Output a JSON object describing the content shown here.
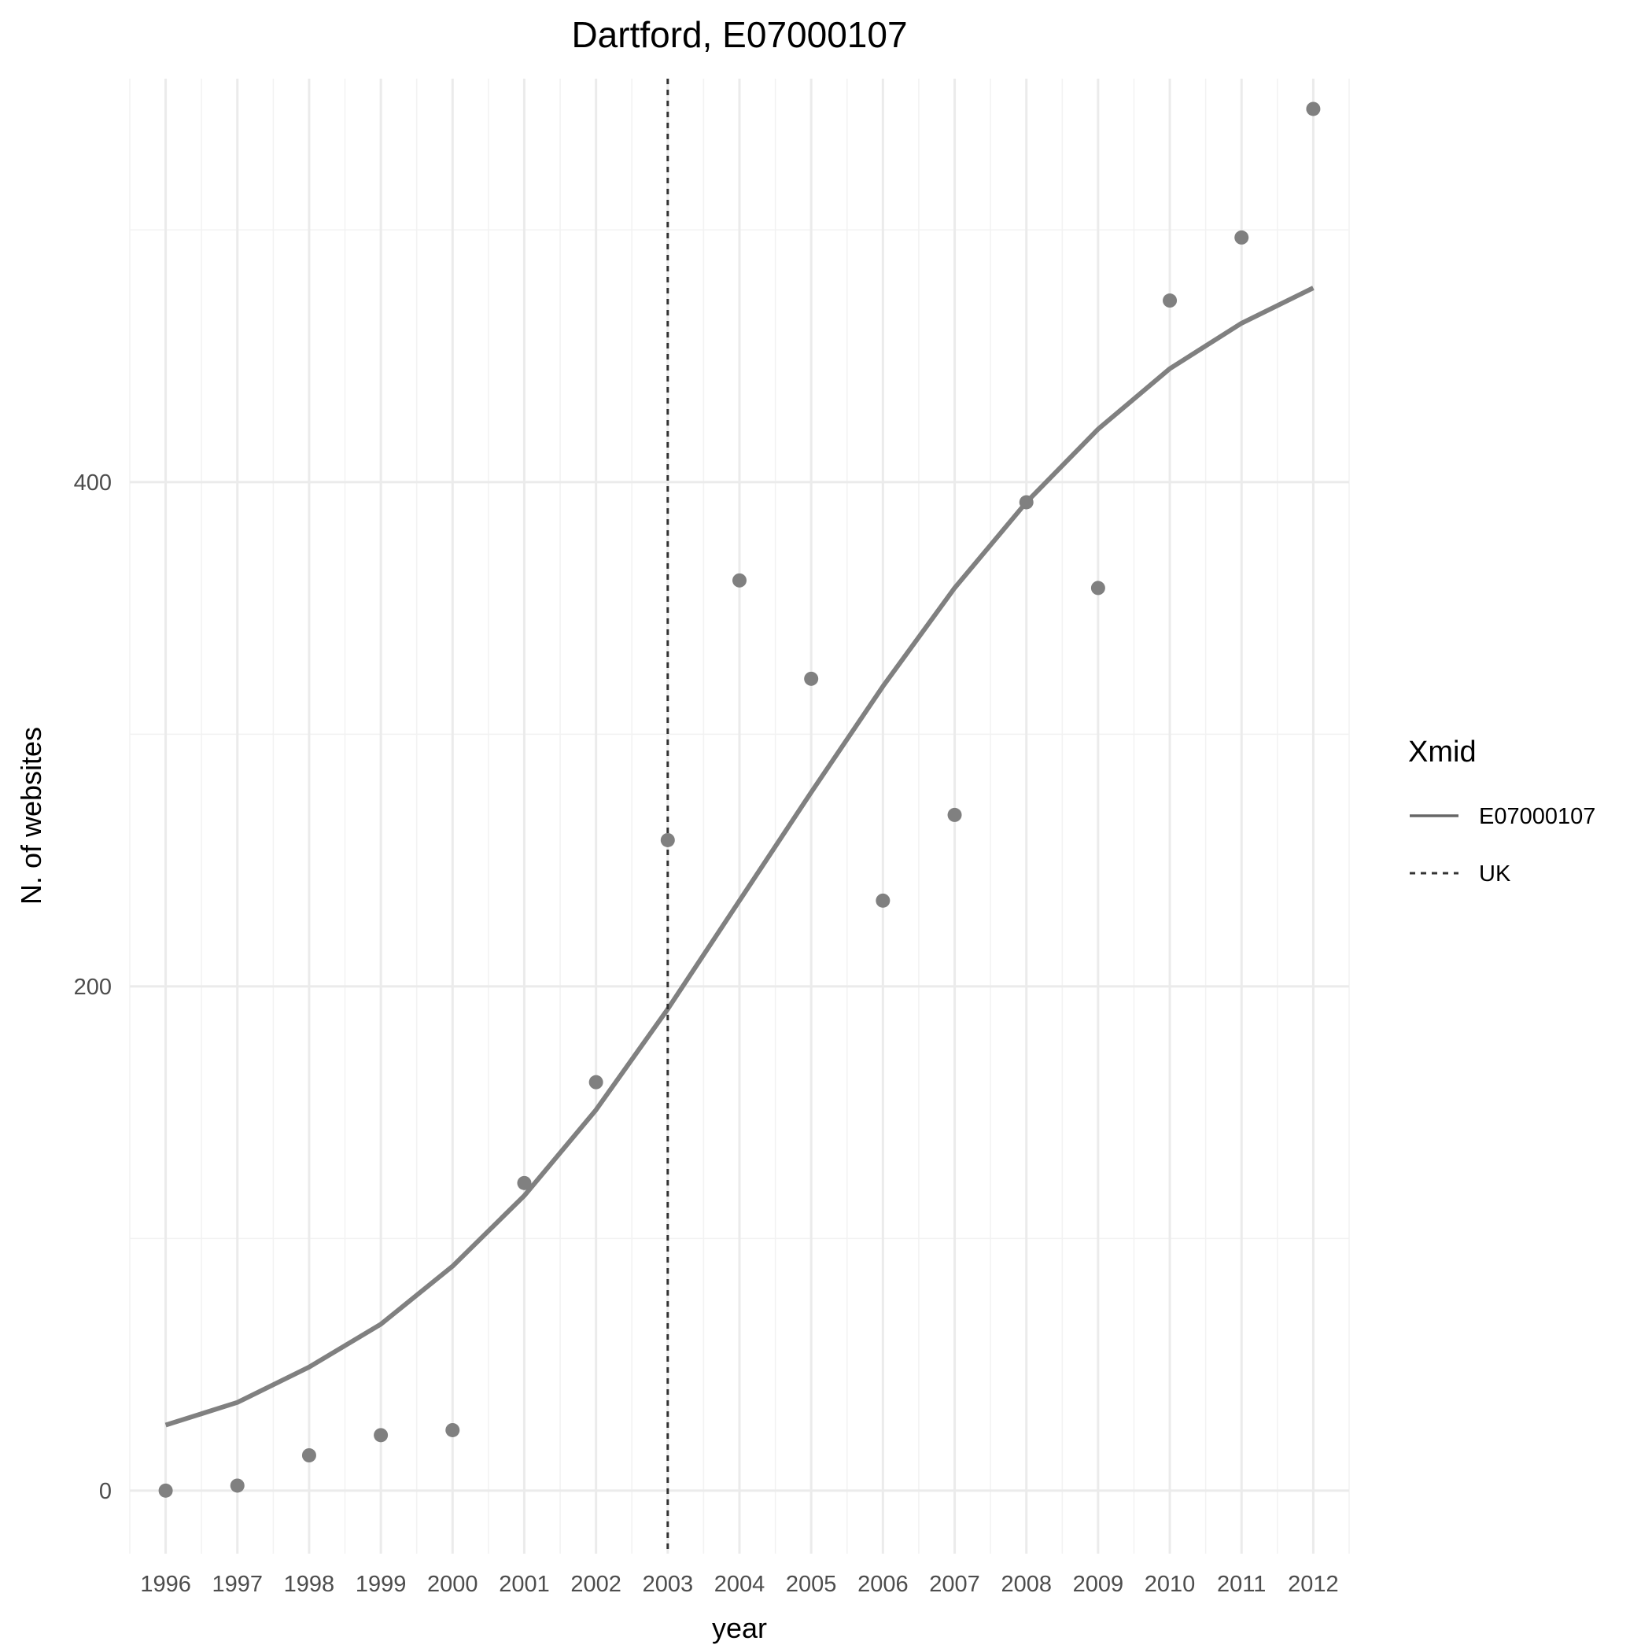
{
  "chart_data": {
    "type": "line",
    "title": "Dartford, E07000107",
    "xlabel": "year",
    "ylabel": "N. of websites",
    "x": [
      1996,
      1997,
      1998,
      1999,
      2000,
      2001,
      2002,
      2003,
      2004,
      2005,
      2006,
      2007,
      2008,
      2009,
      2010,
      2011,
      2012
    ],
    "x_tick_labels": [
      "1996",
      "1997",
      "1998",
      "1999",
      "2000",
      "2001",
      "2002",
      "2003",
      "2004",
      "2005",
      "2006",
      "2007",
      "2008",
      "2009",
      "2010",
      "2011",
      "2012"
    ],
    "y_ticks": [
      0,
      200,
      400
    ],
    "y_tick_labels": [
      "0",
      "200",
      "400"
    ],
    "xlim": [
      1995.5,
      2012.5
    ],
    "ylim": [
      -25,
      560
    ],
    "grid": true,
    "points": [
      0,
      2,
      14,
      22,
      24,
      122,
      162,
      258,
      361,
      322,
      234,
      268,
      392,
      358,
      472,
      497,
      548
    ],
    "series": [
      {
        "name": "E07000107",
        "style": "solid",
        "values": [
          26,
          35,
          49,
          66,
          89,
          117,
          151,
          191,
          234,
          277,
          319,
          358,
          392,
          421,
          445,
          463,
          477
        ]
      }
    ],
    "vline": {
      "x": 2003,
      "style": "dashed",
      "name": "UK"
    },
    "legend": {
      "title": "Xmid",
      "placement": "right",
      "entries": [
        {
          "label": "E07000107",
          "style": "solid"
        },
        {
          "label": "UK",
          "style": "dashed"
        }
      ]
    },
    "colors": {
      "line": "#808080",
      "points": "#808080",
      "vline": "#333333",
      "grid_major": "#ebebeb",
      "grid_minor": "#f2f2f2"
    }
  }
}
